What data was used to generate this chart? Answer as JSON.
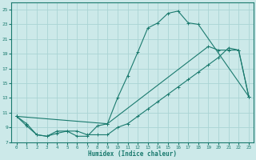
{
  "xlabel": "Humidex (Indice chaleur)",
  "xlim": [
    -0.5,
    23.5
  ],
  "ylim": [
    7,
    26
  ],
  "yticks": [
    7,
    9,
    11,
    13,
    15,
    17,
    19,
    21,
    23,
    25
  ],
  "xticks": [
    0,
    1,
    2,
    3,
    4,
    5,
    6,
    7,
    8,
    9,
    10,
    11,
    12,
    13,
    14,
    15,
    16,
    17,
    18,
    19,
    20,
    21,
    22,
    23
  ],
  "bg_color": "#cce9e9",
  "grid_color": "#aad4d4",
  "line_color": "#1a7a6e",
  "line1_x": [
    0,
    1,
    2,
    3,
    4,
    5,
    6,
    7,
    8,
    9,
    10,
    11,
    12,
    13,
    14,
    15,
    16,
    17,
    18,
    23
  ],
  "line1_y": [
    10.5,
    9.5,
    8.0,
    7.8,
    8.5,
    8.5,
    7.8,
    7.8,
    9.2,
    9.5,
    13.0,
    16.0,
    19.2,
    22.5,
    23.2,
    24.5,
    24.8,
    23.2,
    23.0,
    13.2
  ],
  "line2_x": [
    0,
    1,
    2,
    3,
    4,
    5,
    6,
    7,
    8,
    9,
    10,
    11,
    12,
    13,
    14,
    15,
    16,
    17,
    18,
    19,
    20,
    21,
    22,
    23
  ],
  "line2_y": [
    10.5,
    9.2,
    8.0,
    7.8,
    8.2,
    8.5,
    8.5,
    8.0,
    8.0,
    8.0,
    9.0,
    9.5,
    10.5,
    11.5,
    12.5,
    13.5,
    14.5,
    15.5,
    16.5,
    17.5,
    18.5,
    19.8,
    19.5,
    13.2
  ],
  "line3_x": [
    0,
    9,
    19,
    20,
    21,
    22,
    23
  ],
  "line3_y": [
    10.5,
    9.5,
    20.0,
    19.5,
    19.5,
    19.5,
    13.2
  ]
}
